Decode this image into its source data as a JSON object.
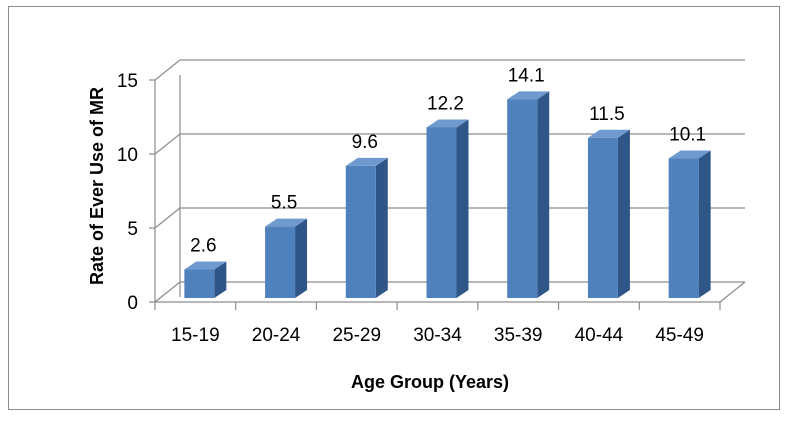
{
  "chart_data": {
    "type": "bar",
    "title": "",
    "xlabel": "Age Group  (Years)",
    "ylabel": "Rate of Ever Use of MR",
    "categories": [
      "15-19",
      "20-24",
      "25-29",
      "30-34",
      "35-39",
      "40-44",
      "45-49"
    ],
    "values": [
      2.6,
      5.5,
      9.6,
      12.2,
      14.1,
      11.5,
      10.1
    ],
    "value_labels": [
      "2.6",
      "5.5",
      "9.6",
      "12.2",
      "14.1",
      "11.5",
      "10.1"
    ],
    "yticks": [
      "0",
      "5",
      "10",
      "15"
    ],
    "ylim": [
      0,
      15
    ],
    "grid": true,
    "legend": "none",
    "style": "3d-column",
    "colors": {
      "front": "#4f81bd",
      "side": "#2f5687",
      "top": "#6f9ad0",
      "grid": "#8c8c8c"
    }
  }
}
